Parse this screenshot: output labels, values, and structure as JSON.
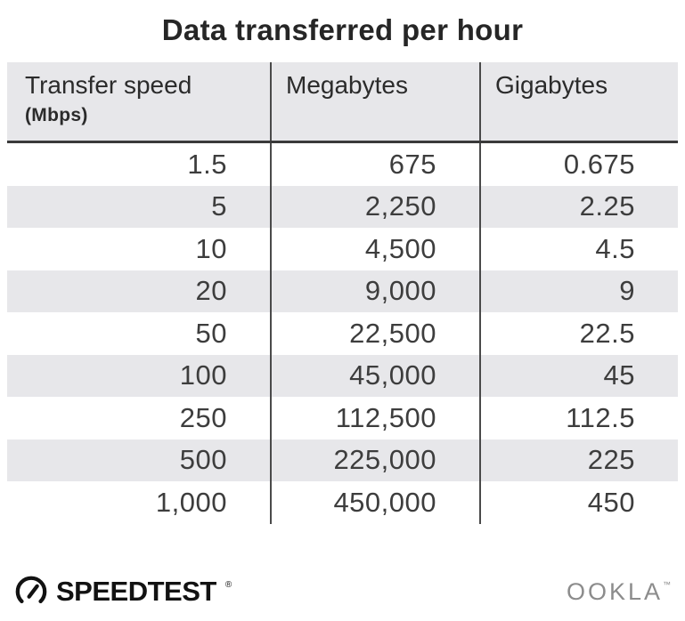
{
  "title": "Data transferred per hour",
  "table": {
    "header": {
      "transfer_speed": "Transfer speed",
      "transfer_speed_unit": "(Mbps)",
      "megabytes": "Megabytes",
      "gigabytes": "Gigabytes"
    }
  },
  "chart_data": {
    "type": "table",
    "title": "Data transferred per hour",
    "columns": [
      "Transfer speed (Mbps)",
      "Megabytes",
      "Gigabytes"
    ],
    "rows": [
      [
        "1.5",
        "675",
        "0.675"
      ],
      [
        "5",
        "2,250",
        "2.25"
      ],
      [
        "10",
        "4,500",
        "4.5"
      ],
      [
        "20",
        "9,000",
        "9"
      ],
      [
        "50",
        "22,500",
        "22.5"
      ],
      [
        "100",
        "45,000",
        "45"
      ],
      [
        "250",
        "112,500",
        "112.5"
      ],
      [
        "500",
        "225,000",
        "225"
      ],
      [
        "1,000",
        "450,000",
        "450"
      ]
    ],
    "layout_hints": {
      "striped_rows": "even rows shaded",
      "stripe_color": "#e7e7ea",
      "header_background": "#e7e7ea",
      "header_underline_color": "#3a3a3a",
      "divider_color": "#4a4a4a",
      "value_alignment": "right"
    }
  },
  "footer": {
    "speedtest": "SPEEDTEST",
    "speedtest_mark": "®",
    "ookla": "OOKLA",
    "ookla_mark": "™"
  },
  "colors": {
    "background": "#ffffff",
    "title_text": "#262626",
    "body_text": "#3d3d3d",
    "ookla_gray": "#8c8c8c"
  }
}
